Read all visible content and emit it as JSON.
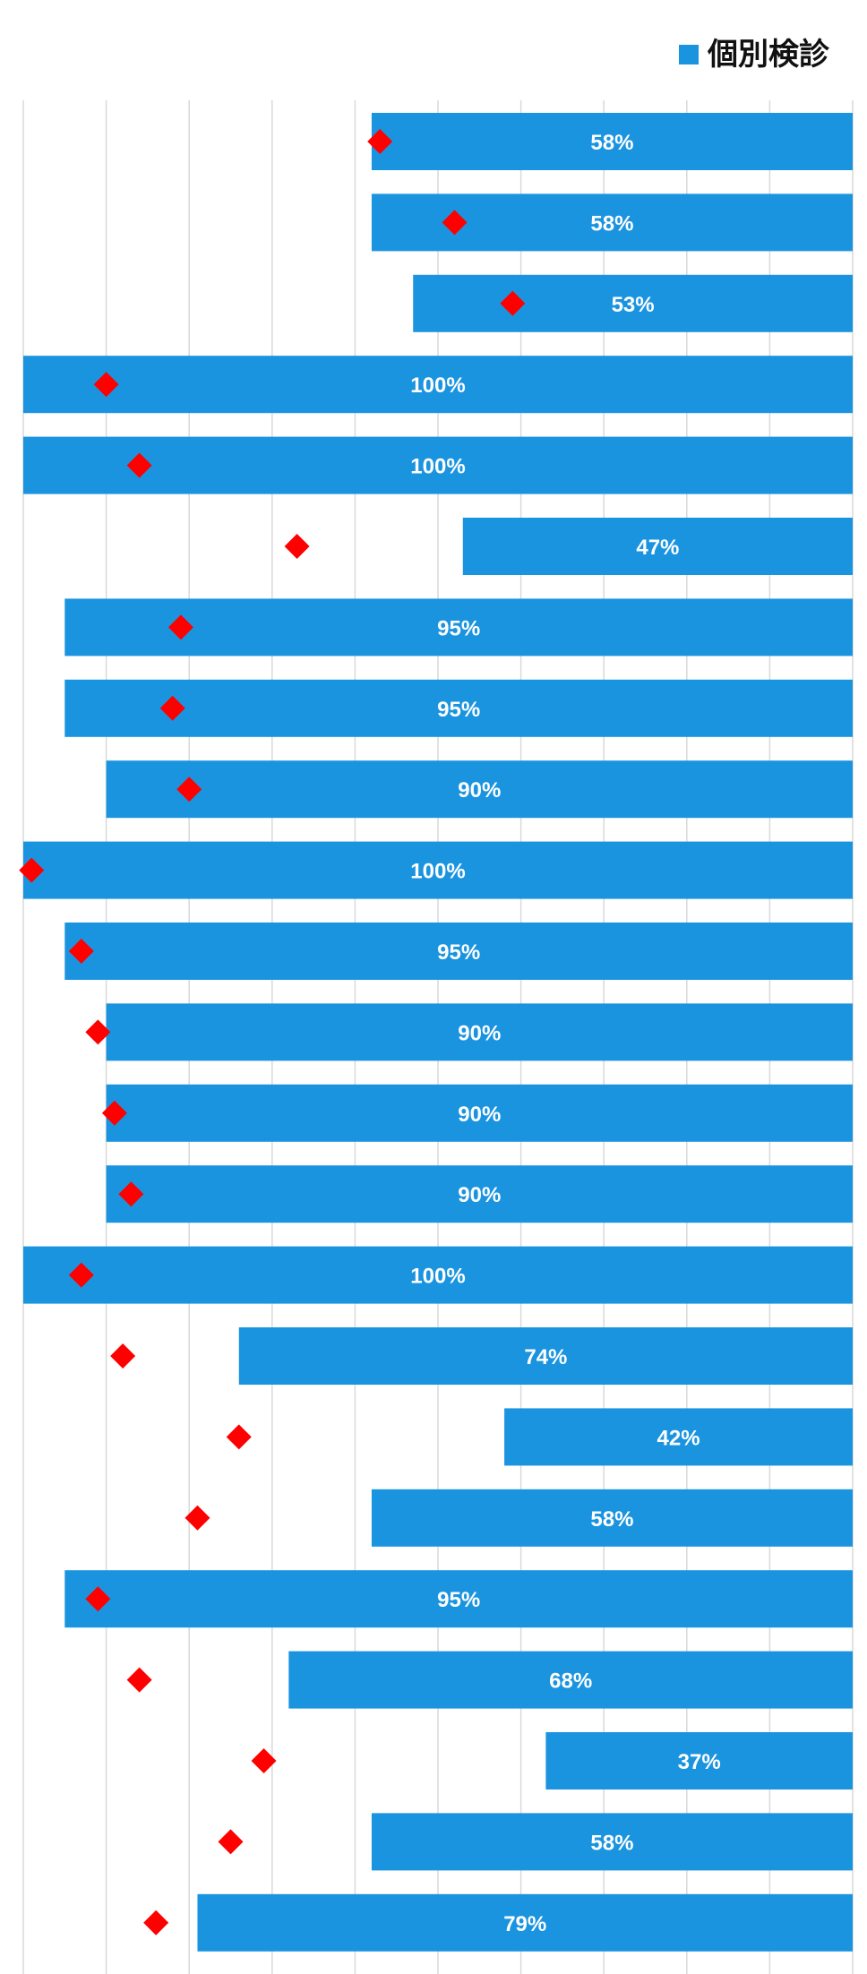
{
  "chart_data": {
    "type": "bar",
    "orientation": "horizontal",
    "reversed_value_axis": true,
    "xlim": [
      0,
      100
    ],
    "grid": true,
    "legend_position": "top-right",
    "series": [
      {
        "name": "個別検診",
        "color": "#1b94e0",
        "values": [
          58,
          58,
          53,
          100,
          100,
          47,
          95,
          95,
          90,
          100,
          95,
          90,
          90,
          90,
          100,
          74,
          42,
          58,
          95,
          68,
          37,
          58,
          79
        ],
        "labels": [
          "58%",
          "58%",
          "53%",
          "100%",
          "100%",
          "47%",
          "95%",
          "95%",
          "90%",
          "100%",
          "95%",
          "90%",
          "90%",
          "90%",
          "100%",
          "74%",
          "42%",
          "58%",
          "95%",
          "68%",
          "37%",
          "58%",
          "79%"
        ]
      },
      {
        "color": "#ff0000",
        "marker": "diamond",
        "values": [
          57,
          48,
          41,
          90,
          86,
          67,
          81,
          82,
          80,
          99,
          93,
          91,
          89,
          87,
          93,
          88,
          74,
          79,
          91,
          86,
          71,
          75,
          84
        ]
      }
    ]
  },
  "legend": {
    "label": "個別検診",
    "color": "#1b94e0"
  },
  "colors": {
    "bar": "#1b94e0",
    "marker": "#ff0000",
    "grid": "#d9d9d9"
  }
}
